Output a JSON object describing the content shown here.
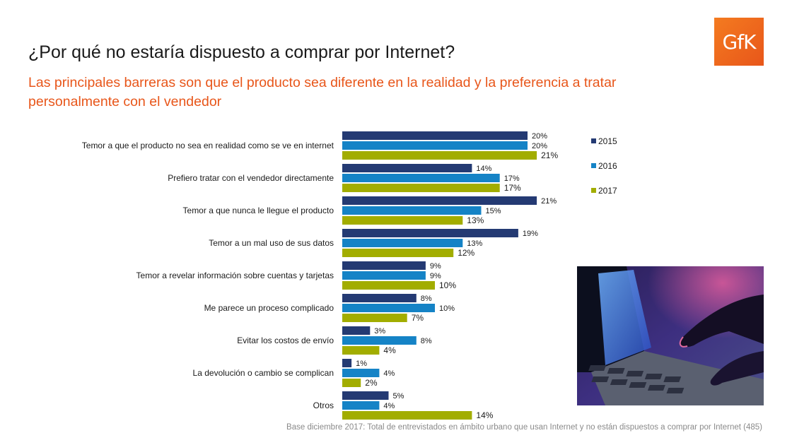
{
  "title": "¿Por qué no estaría dispuesto a comprar por Internet?",
  "subtitle": "Las principales barreras son que el producto sea diferente en la realidad y la preferencia a tratar personalmente con el vendedor",
  "logo_text": "GfK",
  "footnote": "Base diciembre 2017: Total de entrevistados en ámbito urbano que usan Internet y no están dispuestos a comprar por Internet (485)",
  "photo_icon": "hands-typing-on-laptop-image",
  "chart_data": {
    "type": "bar",
    "orientation": "horizontal",
    "categories": [
      "Temor a que el producto no sea en realidad como se ve en internet",
      "Prefiero tratar con el vendedor directamente",
      "Temor a que nunca le llegue el producto",
      "Temor a un mal uso de sus datos",
      "Temor a revelar información sobre cuentas y tarjetas",
      "Me parece un proceso complicado",
      "Evitar los costos de envío",
      "La devolución o cambio se complican",
      "Otros"
    ],
    "series": [
      {
        "name": "2015",
        "color": "#243a73",
        "values": [
          20,
          14,
          21,
          19,
          9,
          8,
          3,
          1,
          5
        ]
      },
      {
        "name": "2016",
        "color": "#1583c6",
        "values": [
          20,
          17,
          15,
          13,
          9,
          10,
          8,
          4,
          4
        ]
      },
      {
        "name": "2017",
        "color": "#a2ad00",
        "values": [
          21,
          17,
          13,
          12,
          10,
          7,
          4,
          2,
          14
        ]
      }
    ],
    "value_suffix": "%",
    "xlim": [
      0,
      21
    ],
    "legend_position": "right",
    "grid": false
  }
}
